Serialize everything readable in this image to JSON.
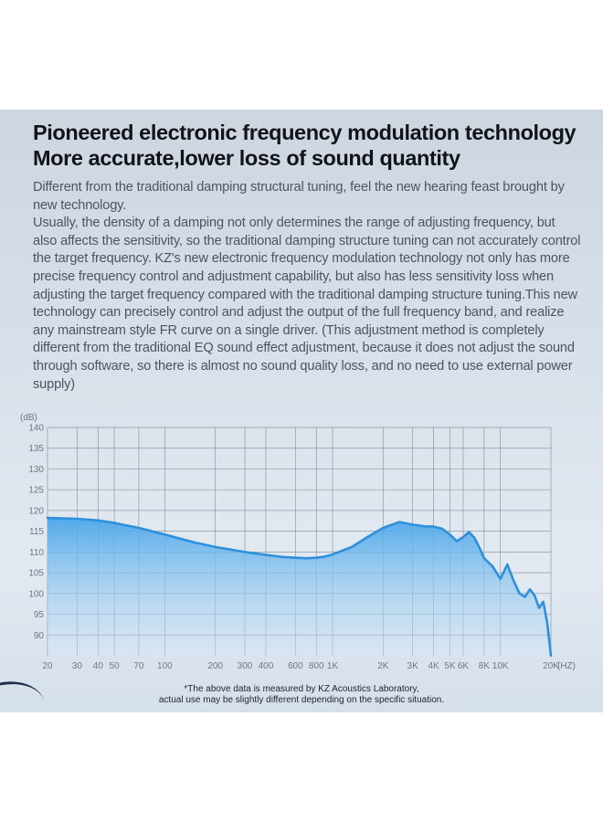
{
  "headline": {
    "line1": "Pioneered electronic frequency modulation technology",
    "line2": "More accurate,lower loss of sound quantity"
  },
  "description": {
    "para1": "Different from the traditional damping structural tuning, feel the new hearing feast brought by new technology.",
    "para2": "Usually, the density of a damping not only determines the range of adjusting frequency, but also affects the sensitivity, so the traditional damping structure tuning can not accurately control the target frequency. KZ's new electronic frequency modulation technology not only has more precise frequency control and adjustment capability, but also has less sensitivity loss when adjusting the target frequency compared with the traditional damping structure tuning.This new technology can precisely control and adjust the output of the full frequency band, and realize any mainstream style FR curve on a single driver. (This adjustment method is completely different from the traditional EQ sound effect adjustment, because it does not adjust the sound through software, so there is almost no sound quality loss, and no need to use external power supply)"
  },
  "footnote": {
    "line1": "*The above data is measured by KZ Acoustics Laboratory,",
    "line2": "actual use may be slightly different depending on the specific situation."
  },
  "colors": {
    "panel_bg": "#d8e0ea",
    "curve_stroke": "#2e8fdb",
    "curve_fill_top": "#4aa6ea",
    "curve_fill_bottom": "#d3e8f8",
    "grid": "#7a8896"
  },
  "chart_data": {
    "type": "area",
    "xscale": "log",
    "xlim": [
      20,
      20000
    ],
    "ylim": [
      85,
      140
    ],
    "ylabel": "(dB)",
    "xunit": "(HZ)",
    "yticks": [
      90,
      95,
      100,
      105,
      110,
      115,
      120,
      125,
      130,
      135,
      140
    ],
    "xticks": [
      {
        "v": 20,
        "label": "20"
      },
      {
        "v": 30,
        "label": "30"
      },
      {
        "v": 40,
        "label": "40"
      },
      {
        "v": 50,
        "label": "50"
      },
      {
        "v": 70,
        "label": "70"
      },
      {
        "v": 100,
        "label": "100"
      },
      {
        "v": 200,
        "label": "200"
      },
      {
        "v": 300,
        "label": "300"
      },
      {
        "v": 400,
        "label": "400"
      },
      {
        "v": 600,
        "label": "600"
      },
      {
        "v": 800,
        "label": "800"
      },
      {
        "v": 1000,
        "label": "1K"
      },
      {
        "v": 2000,
        "label": "2K"
      },
      {
        "v": 3000,
        "label": "3K"
      },
      {
        "v": 4000,
        "label": "4K"
      },
      {
        "v": 5000,
        "label": "5K"
      },
      {
        "v": 6000,
        "label": "6K"
      },
      {
        "v": 8000,
        "label": "8K"
      },
      {
        "v": 10000,
        "label": "10K"
      },
      {
        "v": 20000,
        "label": "20K"
      }
    ],
    "grid": true,
    "series": [
      {
        "points": [
          [
            20,
            118.2
          ],
          [
            30,
            118.0
          ],
          [
            40,
            117.6
          ],
          [
            50,
            117.0
          ],
          [
            70,
            115.8
          ],
          [
            100,
            114.2
          ],
          [
            150,
            112.3
          ],
          [
            200,
            111.2
          ],
          [
            300,
            110.0
          ],
          [
            400,
            109.3
          ],
          [
            500,
            108.8
          ],
          [
            600,
            108.6
          ],
          [
            700,
            108.5
          ],
          [
            800,
            108.6
          ],
          [
            900,
            108.9
          ],
          [
            1000,
            109.4
          ],
          [
            1300,
            111.2
          ],
          [
            1600,
            113.5
          ],
          [
            2000,
            115.8
          ],
          [
            2500,
            117.2
          ],
          [
            3000,
            116.6
          ],
          [
            3500,
            116.2
          ],
          [
            4000,
            116.1
          ],
          [
            4500,
            115.6
          ],
          [
            5000,
            114.2
          ],
          [
            5500,
            112.6
          ],
          [
            6000,
            113.6
          ],
          [
            6500,
            114.8
          ],
          [
            7000,
            113.4
          ],
          [
            7500,
            111.0
          ],
          [
            8000,
            108.5
          ],
          [
            9000,
            106.5
          ],
          [
            10000,
            103.5
          ],
          [
            11000,
            107.0
          ],
          [
            12000,
            103.0
          ],
          [
            13000,
            100.0
          ],
          [
            14000,
            99.2
          ],
          [
            15000,
            101.0
          ],
          [
            16000,
            99.5
          ],
          [
            17000,
            96.5
          ],
          [
            18000,
            98.0
          ],
          [
            19000,
            93.0
          ],
          [
            20000,
            85.0
          ]
        ]
      }
    ]
  }
}
